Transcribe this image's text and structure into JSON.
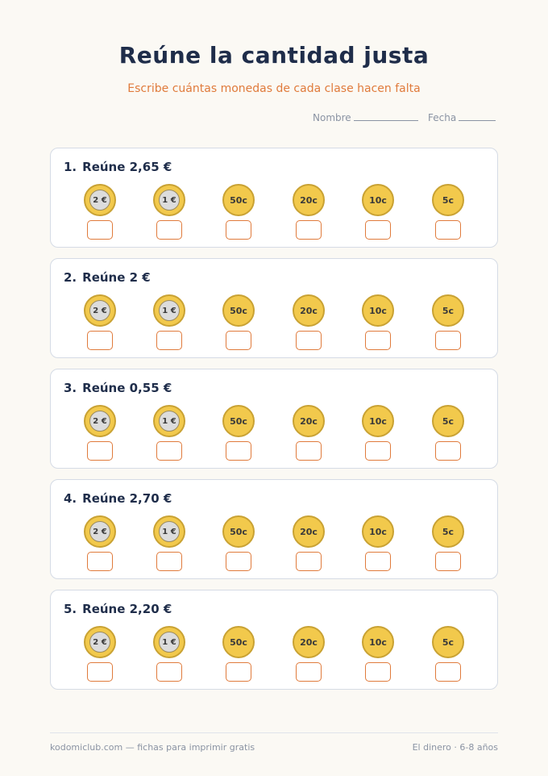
{
  "header": {
    "title": "Reúne la cantidad justa",
    "subtitle": "Escribe cuántas monedas de cada clase hacen falta",
    "name_label": "Nombre",
    "date_label": "Fecha"
  },
  "coins": [
    {
      "label": "2 €",
      "kind": "bimetal"
    },
    {
      "label": "1 €",
      "kind": "bimetal"
    },
    {
      "label": "50c",
      "kind": "gold"
    },
    {
      "label": "20c",
      "kind": "gold"
    },
    {
      "label": "10c",
      "kind": "gold"
    },
    {
      "label": "5c",
      "kind": "gold"
    }
  ],
  "problems": [
    {
      "number": "1.",
      "text": "Reúne 2,65 €"
    },
    {
      "number": "2.",
      "text": "Reúne 2 €"
    },
    {
      "number": "3.",
      "text": "Reúne 0,55 €"
    },
    {
      "number": "4.",
      "text": "Reúne 2,70 €"
    },
    {
      "number": "5.",
      "text": "Reúne 2,20 €"
    }
  ],
  "footer": {
    "left": "kodomiclub.com — fichas para imprimir gratis",
    "right": "El dinero · 6-8 años"
  }
}
